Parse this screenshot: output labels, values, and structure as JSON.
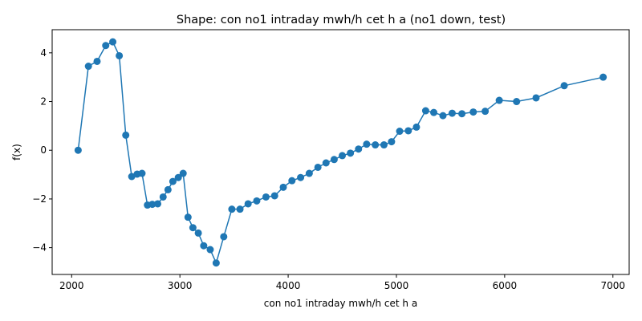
{
  "chart_data": {
    "type": "line",
    "title": "Shape: con no1 intraday mwh/h cet h a (no1 down, test)",
    "xlabel": "con no1 intraday mwh/h cet h a",
    "ylabel": "f(x)",
    "xlim": [
      1820,
      7150
    ],
    "ylim": [
      -5.1,
      4.95
    ],
    "xticks": [
      2000,
      3000,
      4000,
      5000,
      6000,
      7000
    ],
    "yticks": [
      -4,
      -2,
      0,
      2,
      4
    ],
    "grid": false,
    "marker": "circle",
    "color": "#1f77b4",
    "series": [
      {
        "x": [
          2060,
          2155,
          2235,
          2315,
          2380,
          2440,
          2500,
          2555,
          2605,
          2650,
          2700,
          2745,
          2795,
          2845,
          2890,
          2935,
          2985,
          3030,
          3075,
          3120,
          3170,
          3220,
          3280,
          3335,
          3405,
          3480,
          3555,
          3630,
          3710,
          3795,
          3875,
          3955,
          4035,
          4115,
          4195,
          4275,
          4350,
          4425,
          4500,
          4575,
          4650,
          4725,
          4805,
          4885,
          4955,
          5030,
          5110,
          5185,
          5270,
          5345,
          5430,
          5515,
          5605,
          5710,
          5820,
          5950,
          6110,
          6290,
          6550,
          6910
        ],
        "y": [
          0.0,
          3.45,
          3.65,
          4.3,
          4.45,
          3.88,
          0.62,
          -1.08,
          -0.98,
          -0.95,
          -2.25,
          -2.22,
          -2.2,
          -1.92,
          -1.62,
          -1.28,
          -1.12,
          -0.95,
          -2.75,
          -3.18,
          -3.4,
          -3.92,
          -4.08,
          -4.63,
          -3.55,
          -2.42,
          -2.42,
          -2.2,
          -2.08,
          -1.92,
          -1.87,
          -1.52,
          -1.25,
          -1.12,
          -0.95,
          -0.7,
          -0.52,
          -0.38,
          -0.22,
          -0.12,
          0.05,
          0.25,
          0.22,
          0.22,
          0.35,
          0.78,
          0.8,
          0.95,
          1.62,
          1.55,
          1.42,
          1.52,
          1.5,
          1.57,
          1.6,
          2.05,
          2.0,
          2.15,
          2.65,
          3.0
        ]
      }
    ]
  }
}
